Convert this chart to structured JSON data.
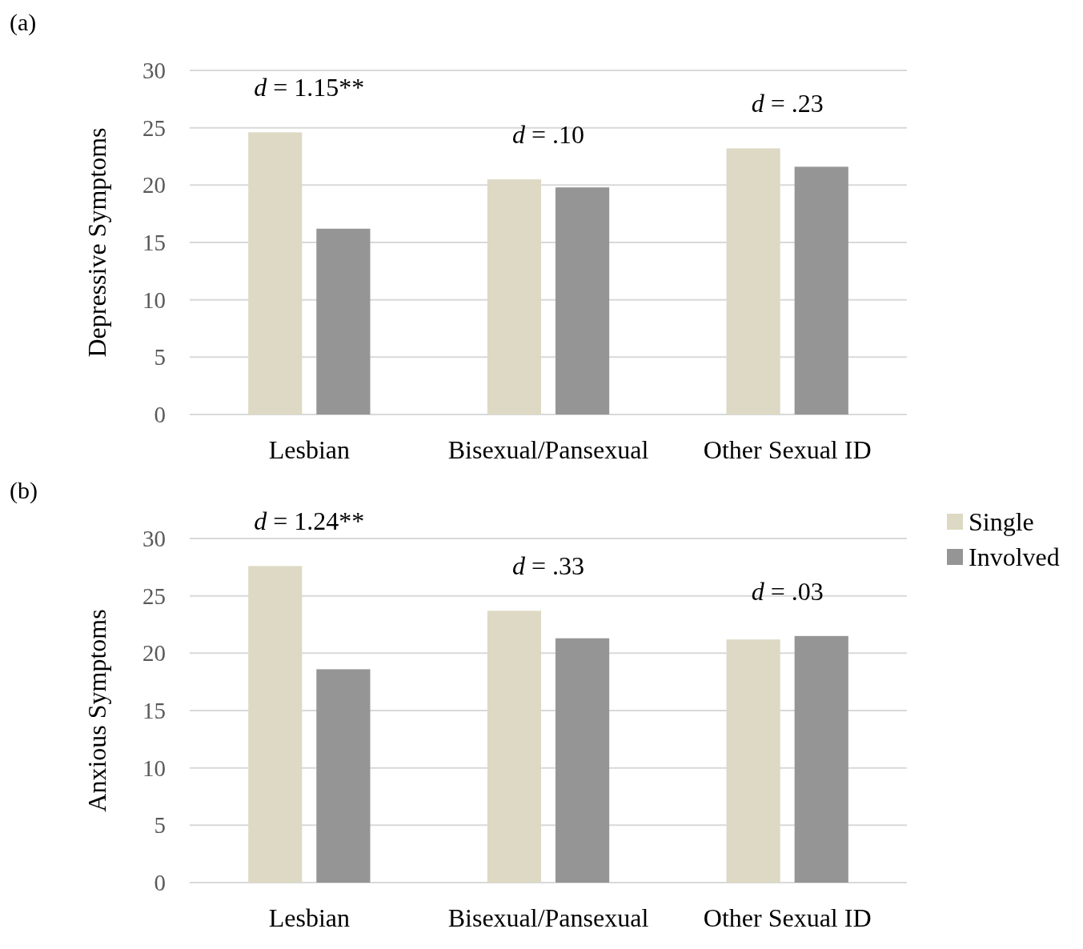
{
  "chart_data": [
    {
      "type": "bar",
      "title": "(a)",
      "ylabel": "Depressive Symptoms",
      "categories": [
        "Lesbian",
        "Bisexual/Pansexual",
        "Other Sexual ID"
      ],
      "series": [
        {
          "color": "#ddd9c4",
          "values": [
            24.6,
            20.5,
            23.2
          ]
        },
        {
          "color": "#959595",
          "values": [
            16.2,
            19.8,
            21.6
          ]
        }
      ],
      "ylim": [
        0,
        30
      ],
      "yticks": [
        0,
        5,
        10,
        15,
        20,
        25,
        30
      ],
      "grid": "y",
      "legend": false,
      "annotations": [
        "d = 1.15**",
        "d = .10",
        "d = .23"
      ]
    },
    {
      "type": "bar",
      "title": "(b)",
      "ylabel": "Anxious Symptoms",
      "categories": [
        "Lesbian",
        "Bisexual/Pansexual",
        "Other Sexual ID"
      ],
      "series": [
        {
          "name": "Single",
          "color": "#ddd9c4",
          "values": [
            27.6,
            23.7,
            21.2
          ]
        },
        {
          "name": "Involved",
          "color": "#959595",
          "values": [
            18.6,
            21.3,
            21.5
          ]
        }
      ],
      "ylim": [
        0,
        30
      ],
      "yticks": [
        0,
        5,
        10,
        15,
        20,
        25,
        30
      ],
      "grid": "y",
      "legend": "right",
      "annotations": [
        "d = 1.24**",
        "d = .33",
        "d = .03"
      ]
    }
  ]
}
